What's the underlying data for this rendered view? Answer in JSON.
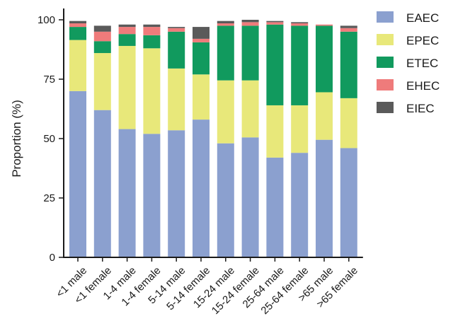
{
  "chart_data": {
    "type": "bar",
    "stacked": true,
    "title": "",
    "xlabel": "",
    "ylabel": "Proportion (%)",
    "ylim": [
      0,
      100
    ],
    "yticks": [
      0,
      25,
      50,
      75,
      100
    ],
    "grid": false,
    "legend_position": "right",
    "categories": [
      "<1 male",
      "<1 female",
      "1-4 male",
      "1-4 female",
      "5-14 male",
      "5-14 female",
      "15-24 male",
      "15-24 female",
      "25-64 male",
      "25-64 female",
      ">65 male",
      ">65 female"
    ],
    "series": [
      {
        "name": "EAEC",
        "color": "#8ba0cf",
        "values": [
          70.0,
          62.0,
          54.0,
          52.0,
          53.5,
          58.0,
          48.0,
          50.5,
          42.0,
          44.0,
          49.5,
          46.0
        ]
      },
      {
        "name": "EPEC",
        "color": "#e8e87a",
        "values": [
          21.5,
          24.0,
          35.0,
          36.0,
          26.0,
          19.0,
          26.5,
          24.0,
          22.0,
          20.0,
          20.0,
          21.0
        ]
      },
      {
        "name": "ETEC",
        "color": "#119a5e",
        "values": [
          5.5,
          5.0,
          5.0,
          5.5,
          15.5,
          13.5,
          23.0,
          23.0,
          34.0,
          33.5,
          28.0,
          28.0
        ]
      },
      {
        "name": "EHEC",
        "color": "#ef7b7b",
        "values": [
          1.5,
          4.0,
          3.0,
          3.5,
          1.5,
          1.5,
          1.0,
          1.5,
          1.0,
          1.0,
          0.5,
          1.5
        ]
      },
      {
        "name": "EIEC",
        "color": "#5a5a5a",
        "values": [
          1.0,
          2.5,
          1.0,
          1.0,
          0.5,
          5.0,
          1.0,
          1.0,
          0.5,
          0.5,
          0.0,
          1.0
        ]
      }
    ]
  }
}
